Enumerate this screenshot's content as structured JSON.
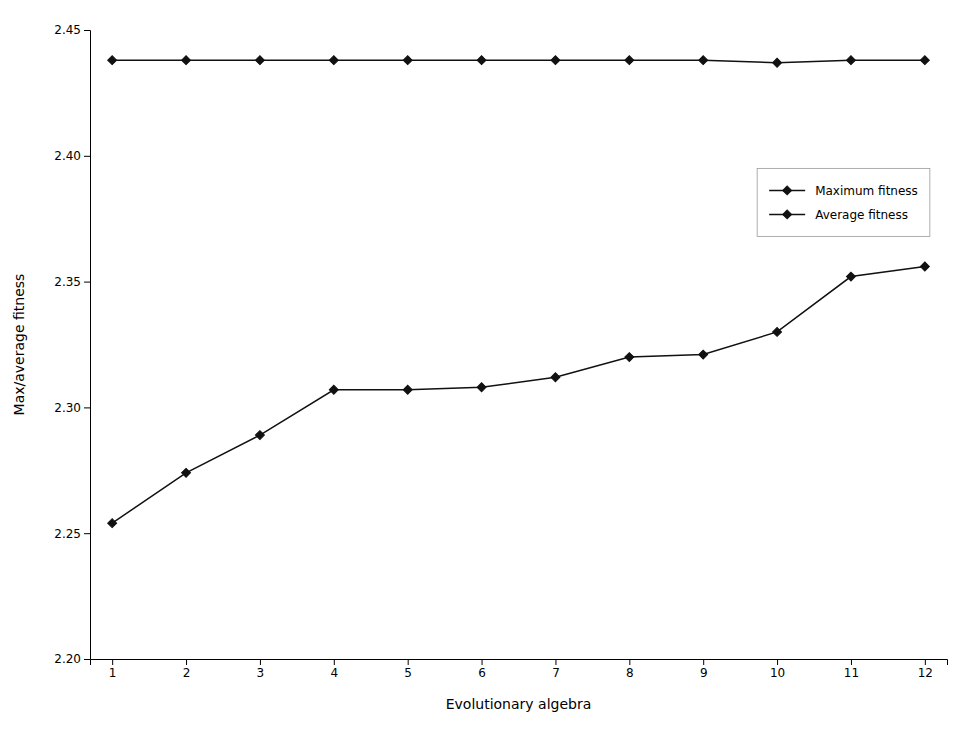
{
  "chart_data": {
    "type": "line",
    "x": [
      1,
      2,
      3,
      4,
      5,
      6,
      7,
      8,
      9,
      10,
      11,
      12
    ],
    "series": [
      {
        "name": "Maximum fitness",
        "color": "#111111",
        "values": [
          2.438,
          2.438,
          2.438,
          2.438,
          2.438,
          2.438,
          2.438,
          2.438,
          2.438,
          2.437,
          2.438,
          2.438
        ]
      },
      {
        "name": "Average fitness",
        "color": "#111111",
        "values": [
          2.254,
          2.274,
          2.289,
          2.307,
          2.307,
          2.308,
          2.312,
          2.32,
          2.321,
          2.33,
          2.352,
          2.356
        ]
      }
    ],
    "xlabel": "Evolutionary algebra",
    "ylabel": "Max/average fitness",
    "xlim": [
      0.7,
      12.3
    ],
    "xticks": [
      1,
      2,
      3,
      4,
      5,
      6,
      7,
      8,
      9,
      10,
      11,
      12
    ],
    "ylim": [
      2.2,
      2.45
    ],
    "yticks": [
      {
        "value": 2.2,
        "label": "2.20"
      },
      2.25,
      {
        "value": 2.3,
        "label": "2.30"
      },
      2.35,
      {
        "value": 2.4,
        "label": "2.40"
      },
      2.45
    ],
    "grid": false,
    "legend": "right",
    "marker": "diamond",
    "line_style": "solid"
  }
}
